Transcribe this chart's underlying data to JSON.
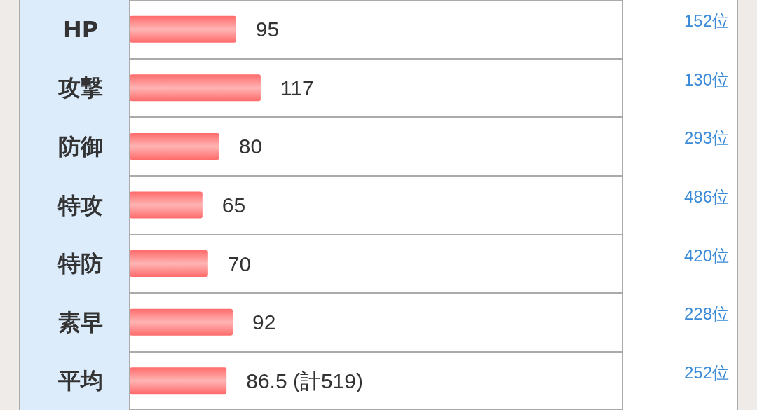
{
  "chart_data": {
    "type": "bar",
    "orientation": "horizontal",
    "categories": [
      "HP",
      "攻撃",
      "防御",
      "特攻",
      "特防",
      "素早",
      "平均"
    ],
    "values": [
      95,
      117,
      80,
      65,
      70,
      92,
      86.5
    ],
    "value_labels": [
      "95",
      "117",
      "80",
      "65",
      "70",
      "92",
      "86.5 (計519)"
    ],
    "color": "#ff6b6b",
    "xlim": [
      0,
      440
    ],
    "grid": "y",
    "tick_labels": "y",
    "annotations": [
      "152位",
      "130位",
      "293位",
      "486位",
      "420位",
      "228位",
      "252位"
    ]
  }
}
